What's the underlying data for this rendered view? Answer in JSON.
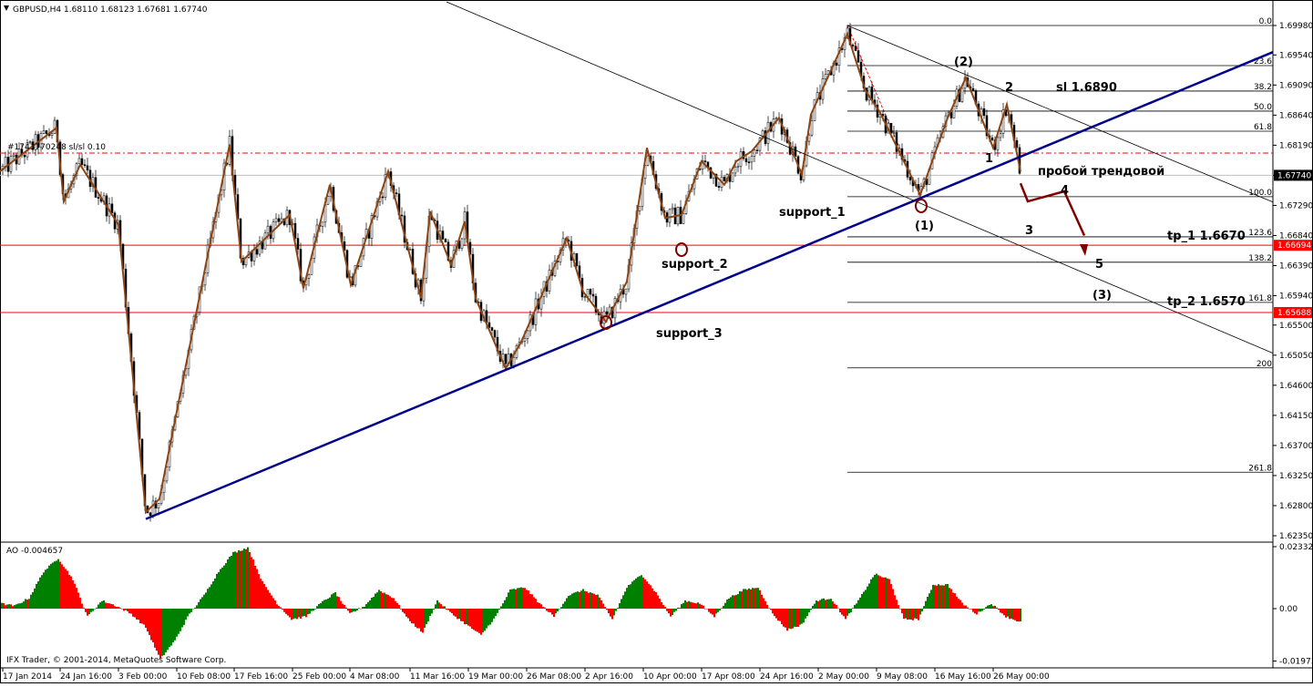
{
  "header": {
    "symbol_line": "GBPUSD,H4  1.68110 1.68123 1.67681 1.67740",
    "order_line": "#1743770248 sl/sl 0.10"
  },
  "ao_header": "AO -0.004657",
  "copyright": "IFX Trader, © 2001-2014, MetaQuotes Software Corp.",
  "colors": {
    "bull": "#008000",
    "bear": "#ff0000",
    "trendline": "#00008b",
    "zigzag": "#8b4513",
    "hline": "#ff0000",
    "forecast": "#800000",
    "marker": "#800000",
    "current_price_bg": "#000000"
  },
  "chart_data": [
    {
      "type": "candlestick",
      "name": "GBPUSD,H4",
      "ohlc_header": {
        "open": 1.6811,
        "high": 1.68123,
        "low": 1.67681,
        "close": 1.6774
      },
      "ylim": [
        1.62,
        1.702
      ],
      "y_ticks": [
        "1.69980",
        "1.69540",
        "1.69090",
        "1.68640",
        "1.68190",
        "1.67740",
        "1.67290",
        "1.66840",
        "1.66390",
        "1.65940",
        "1.65500",
        "1.65050",
        "1.64600",
        "1.64150",
        "1.63700",
        "1.63250",
        "1.62800",
        "1.62350"
      ],
      "x_ticks": [
        "17 Jan 2014",
        "24 Jan 16:00",
        "3 Feb 00:00",
        "10 Feb 08:00",
        "17 Feb 16:00",
        "25 Feb 00:00",
        "4 Mar 08:00",
        "11 Mar 16:00",
        "19 Mar 00:00",
        "26 Mar 08:00",
        "2 Apr 16:00",
        "10 Apr 00:00",
        "17 Apr 08:00",
        "24 Apr 16:00",
        "2 May 00:00",
        "9 May 08:00",
        "16 May 16:00",
        "26 May 00:00"
      ],
      "current_price": "1.67740",
      "price_tags": [
        {
          "label": "1.66694",
          "value": 1.66694
        },
        {
          "label": "1.65688",
          "value": 1.65688
        }
      ],
      "zigzag_price_path": [
        1.678,
        1.6845,
        1.6735,
        1.679,
        1.67,
        1.627,
        1.629,
        1.682,
        1.6645,
        1.6715,
        1.6605,
        1.676,
        1.661,
        1.678,
        1.659,
        1.672,
        1.664,
        1.6705,
        1.659,
        1.6485,
        1.6525,
        1.668,
        1.66,
        1.6555,
        1.6615,
        1.6815,
        1.671,
        1.6715,
        1.6795,
        1.676,
        1.6795,
        1.681,
        1.686,
        1.6775,
        1.6865,
        1.6985,
        1.69,
        1.687,
        1.6745,
        1.686,
        1.692,
        1.6815,
        1.688,
        1.678
      ],
      "fibonacci": [
        {
          "level": "0.0",
          "price": 1.6998
        },
        {
          "level": "23.6",
          "price": 1.6938
        },
        {
          "level": "38.2",
          "price": 1.69
        },
        {
          "level": "50.0",
          "price": 1.687
        },
        {
          "level": "61.8",
          "price": 1.684
        },
        {
          "level": "100.0",
          "price": 1.6742
        },
        {
          "level": "123.6",
          "price": 1.6682
        },
        {
          "level": "138.2",
          "price": 1.6644
        },
        {
          "level": "161.8",
          "price": 1.6584
        },
        {
          "level": "200",
          "price": 1.6486
        },
        {
          "level": "261.8",
          "price": 1.633
        }
      ],
      "annotations": {
        "support_1": "support_1",
        "support_2": "support_2",
        "support_3": "support_3",
        "wave_1_paren": "(1)",
        "wave_2_paren": "(2)",
        "wave_3_paren": "(3)",
        "w1": "1",
        "w2": "2",
        "w3": "3",
        "w4": "4",
        "w5": "5",
        "sl": "sl 1.6890",
        "breakout": "пробой трендовой",
        "tp1": "tp_1 1.6670",
        "tp2": "tp_2 1.6570"
      }
    },
    {
      "type": "bar",
      "name": "AO",
      "current_value": -0.004657,
      "y_ticks": [
        "0.02332",
        "0.00",
        "-0.01973"
      ],
      "ylim": [
        -0.021,
        0.0245
      ],
      "envelope": [
        0.002,
        0.001,
        0.004,
        0.014,
        0.019,
        0.011,
        -0.003,
        0.003,
        0.001,
        -0.002,
        -0.007,
        -0.019,
        -0.012,
        -0.002,
        0.005,
        0.014,
        0.021,
        0.023,
        0.01,
        0.002,
        -0.004,
        -0.003,
        0.002,
        0.006,
        -0.002,
        0.001,
        0.007,
        0.004,
        -0.004,
        -0.009,
        0.003,
        -0.002,
        -0.006,
        -0.01,
        -0.003,
        0.007,
        0.008,
        0.002,
        -0.003,
        0.005,
        0.007,
        0.005,
        -0.004,
        0.008,
        0.013,
        0.006,
        -0.003,
        0.003,
        0.002,
        -0.003,
        0.004,
        0.007,
        0.008,
        -0.002,
        -0.008,
        -0.006,
        0.003,
        0.004,
        -0.004,
        0.004,
        0.013,
        0.011,
        -0.004,
        -0.004,
        0.009,
        0.009,
        0.002,
        -0.002,
        0.002,
        -0.003,
        -0.005
      ]
    }
  ]
}
